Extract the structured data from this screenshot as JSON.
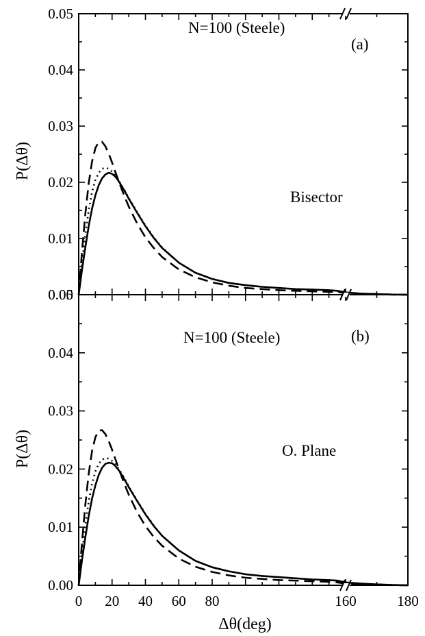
{
  "chart_data": [
    {
      "type": "line",
      "panel_label": "(a)",
      "annotation_top": "N=100 (Steele)",
      "annotation_mid": "Bisector",
      "ylabel": "P(Δθ)",
      "xlabel": "",
      "ylim": [
        0,
        0.05
      ],
      "xlim": [
        0,
        180
      ],
      "x_break": [
        160,
        160
      ],
      "yticks": [
        "0.00",
        "0.01",
        "0.02",
        "0.03",
        "0.04",
        "0.05"
      ],
      "xticks": [],
      "series": [
        {
          "style": "solid",
          "x": [
            0,
            2,
            4,
            6,
            8,
            10,
            12,
            14,
            16,
            18,
            20,
            22,
            24,
            26,
            28,
            30,
            35,
            40,
            45,
            50,
            60,
            70,
            80,
            90,
            100,
            110,
            120,
            130,
            140,
            150,
            155,
            160,
            165,
            170,
            175,
            180
          ],
          "y": [
            0.0,
            0.0045,
            0.0085,
            0.0122,
            0.0153,
            0.0177,
            0.0195,
            0.0207,
            0.0214,
            0.0217,
            0.0215,
            0.021,
            0.0202,
            0.0192,
            0.0182,
            0.0171,
            0.0146,
            0.0122,
            0.0101,
            0.0083,
            0.0057,
            0.0039,
            0.0028,
            0.0021,
            0.0017,
            0.0014,
            0.0012,
            0.001,
            0.0009,
            0.0008,
            0.0007,
            0.0004,
            0.0002,
            0.0001,
            3e-05,
            0.0
          ]
        },
        {
          "style": "dashed",
          "x": [
            0,
            2,
            4,
            6,
            8,
            10,
            12,
            14,
            16,
            18,
            20,
            22,
            24,
            26,
            28,
            30,
            35,
            40,
            45,
            50,
            60,
            70,
            80,
            90,
            100,
            110,
            120,
            130,
            140,
            150,
            155,
            160,
            165,
            170,
            175,
            180
          ],
          "y": [
            0.0,
            0.0078,
            0.0145,
            0.0198,
            0.0237,
            0.0261,
            0.0272,
            0.0272,
            0.0264,
            0.0251,
            0.0235,
            0.0218,
            0.0202,
            0.0186,
            0.0171,
            0.0157,
            0.0127,
            0.0102,
            0.0083,
            0.0067,
            0.0045,
            0.0031,
            0.0022,
            0.0016,
            0.0012,
            0.001,
            0.0008,
            0.0007,
            0.0006,
            0.0005,
            0.0005,
            0.0003,
            0.0002,
            0.0001,
            2e-05,
            0.0
          ]
        },
        {
          "style": "dotted",
          "x": [
            0,
            2,
            4,
            6,
            8,
            10,
            12,
            14,
            16,
            18,
            20,
            22,
            24,
            26,
            28,
            30,
            35,
            40,
            45,
            50,
            60,
            70,
            80,
            90,
            100,
            110,
            120,
            130,
            140,
            150,
            155,
            160,
            165,
            170,
            175,
            180
          ],
          "y": [
            0.0,
            0.0058,
            0.0108,
            0.015,
            0.0183,
            0.0204,
            0.0217,
            0.0224,
            0.0226,
            0.0224,
            0.0219,
            0.0212,
            0.0203,
            0.0193,
            0.0183,
            0.0172,
            0.0147,
            0.0123,
            0.0102,
            0.0084,
            0.0057,
            0.0039,
            0.0028,
            0.0021,
            0.0017,
            0.0014,
            0.0012,
            0.001,
            0.0009,
            0.0008,
            0.0007,
            0.0004,
            0.0002,
            0.0001,
            3e-05,
            0.0
          ]
        }
      ]
    },
    {
      "type": "line",
      "panel_label": "(b)",
      "annotation_top": "N=100 (Steele)",
      "annotation_mid": "O.  Plane",
      "ylabel": "P(Δθ)",
      "xlabel": "Δθ(deg)",
      "ylim": [
        0,
        0.05
      ],
      "xlim": [
        0,
        180
      ],
      "x_break": [
        160,
        160
      ],
      "yticks": [
        "0.00",
        "0.01",
        "0.02",
        "0.03",
        "0.04",
        "0.05"
      ],
      "xticks": [
        {
          "value": 0,
          "label": "0"
        },
        {
          "value": 20,
          "label": "20"
        },
        {
          "value": 40,
          "label": "40"
        },
        {
          "value": 60,
          "label": "60"
        },
        {
          "value": 80,
          "label": "80"
        },
        {
          "value": 160,
          "label": "160"
        },
        {
          "value": 180,
          "label": "180"
        }
      ],
      "series": [
        {
          "style": "solid",
          "x": [
            0,
            2,
            4,
            6,
            8,
            10,
            12,
            14,
            16,
            18,
            20,
            22,
            24,
            26,
            28,
            30,
            35,
            40,
            45,
            50,
            60,
            70,
            80,
            90,
            100,
            110,
            120,
            130,
            140,
            150,
            155,
            160,
            165,
            170,
            175,
            180
          ],
          "y": [
            0.0,
            0.0044,
            0.0083,
            0.0119,
            0.0149,
            0.0172,
            0.019,
            0.0202,
            0.0209,
            0.0211,
            0.021,
            0.0205,
            0.0198,
            0.0189,
            0.0179,
            0.0169,
            0.0145,
            0.0122,
            0.0102,
            0.0085,
            0.006,
            0.0042,
            0.0031,
            0.0024,
            0.0019,
            0.0016,
            0.0014,
            0.0012,
            0.001,
            0.0009,
            0.0008,
            0.0005,
            0.0003,
            0.00015,
            5e-05,
            0.0
          ]
        },
        {
          "style": "dashed",
          "x": [
            0,
            2,
            4,
            6,
            8,
            10,
            12,
            14,
            16,
            18,
            20,
            22,
            24,
            26,
            28,
            30,
            35,
            40,
            45,
            50,
            60,
            70,
            80,
            90,
            100,
            110,
            120,
            130,
            140,
            150,
            155,
            160,
            165,
            170,
            175,
            180
          ],
          "y": [
            0.0,
            0.0075,
            0.014,
            0.0192,
            0.0231,
            0.0255,
            0.0266,
            0.0267,
            0.026,
            0.0248,
            0.0233,
            0.0217,
            0.0201,
            0.0185,
            0.017,
            0.0156,
            0.0126,
            0.0102,
            0.0083,
            0.0068,
            0.0046,
            0.0032,
            0.0023,
            0.0017,
            0.0013,
            0.0011,
            0.0009,
            0.0008,
            0.0007,
            0.0006,
            0.0005,
            0.0003,
            0.0002,
            0.0001,
            2e-05,
            0.0
          ]
        },
        {
          "style": "dotted",
          "x": [
            0,
            2,
            4,
            6,
            8,
            10,
            12,
            14,
            16,
            18,
            20,
            22,
            24,
            26,
            28,
            30,
            35,
            40,
            45,
            50,
            60,
            70,
            80,
            90,
            100,
            110,
            120,
            130,
            140,
            150,
            155,
            160,
            165,
            170,
            175,
            180
          ],
          "y": [
            0.0,
            0.0056,
            0.0104,
            0.0144,
            0.0175,
            0.0196,
            0.0209,
            0.0216,
            0.0219,
            0.0218,
            0.0214,
            0.0208,
            0.02,
            0.0191,
            0.0181,
            0.017,
            0.0146,
            0.0123,
            0.0103,
            0.0085,
            0.006,
            0.0042,
            0.0031,
            0.0024,
            0.0019,
            0.0016,
            0.0014,
            0.0012,
            0.001,
            0.0009,
            0.0008,
            0.0005,
            0.0003,
            0.00015,
            5e-05,
            0.0
          ]
        }
      ]
    }
  ]
}
